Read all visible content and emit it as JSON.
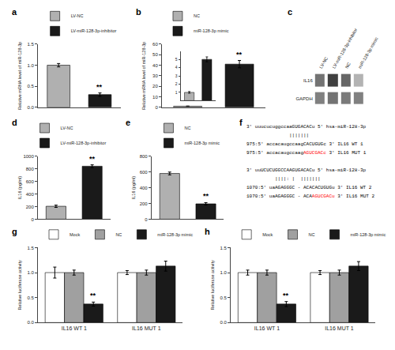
{
  "chart_data": [
    {
      "type": "bar",
      "title": "a",
      "series": [
        {
          "name": "LV-NC",
          "color": "#b0b0b0",
          "values": [
            1.0
          ],
          "errors": [
            0.04
          ]
        },
        {
          "name": "LV-miR-128-3p-inhibitor",
          "color": "#1a1a1a",
          "values": [
            0.3
          ],
          "errors": [
            0.04
          ]
        }
      ],
      "ylabel": "Relative mRNA level of miR-128-3p",
      "ylim": [
        0,
        1.5
      ],
      "yticks": [
        {
          "value": 0,
          "label": "0.0"
        },
        0.5,
        {
          "value": 1,
          "label": "1.0"
        },
        1.5
      ],
      "legend": "upper right",
      "tick_labels": "y",
      "grid": false,
      "annotations": [
        {
          "text": "**",
          "series": "LV-miR-128-3p-inhibitor"
        }
      ]
    },
    {
      "type": "bar",
      "title": "b",
      "series": [
        {
          "name": "NC",
          "color": "#b0b0b0",
          "values": [
            1.0
          ],
          "errors": [
            0.15
          ]
        },
        {
          "name": "miR-128-3p mimic",
          "color": "#1a1a1a",
          "values": [
            41.0
          ],
          "errors": [
            3.5
          ]
        }
      ],
      "ylabel": "Relative mRNA level of miR-128-3p",
      "ylim": [
        0,
        60
      ],
      "yticks": [
        0,
        10,
        20,
        30,
        40,
        50,
        60
      ],
      "legend": "upper left",
      "tick_labels": "y",
      "grid": false,
      "annotations": [
        {
          "text": "**",
          "series": "miR-128-3p mimic"
        }
      ]
    },
    {
      "type": "bar",
      "values": [
        1.0,
        5.0
      ],
      "errors": [
        0.1,
        0.3
      ],
      "colors": [
        "#b0b0b0",
        "#1a1a1a"
      ],
      "ylim": [
        0,
        6
      ],
      "yticks": [
        1,
        2,
        3,
        4,
        5
      ],
      "tick_labels": "y",
      "grid": false
    },
    {
      "type": "blot",
      "title": "c",
      "categories": [
        "LV-NC",
        "LV-miR-128-3p-inhibitor",
        "NC",
        "miR-128-3p mimic"
      ],
      "series": [
        {
          "name": "IL16",
          "values": [
            0.55,
            0.75,
            0.6,
            0.3
          ]
        },
        {
          "name": "GAPDH",
          "values": [
            0.5,
            0.55,
            0.52,
            0.5
          ]
        }
      ],
      "zlim": [
        0,
        1
      ]
    },
    {
      "type": "bar",
      "title": "d",
      "series": [
        {
          "name": "LV-NC",
          "color": "#b0b0b0",
          "values": [
            205
          ],
          "errors": [
            18
          ]
        },
        {
          "name": "LV-miR-128-3p-inhibitor",
          "color": "#1a1a1a",
          "values": [
            840
          ],
          "errors": [
            22
          ]
        }
      ],
      "ylabel": "IL16 (pg/ml)",
      "ylim": [
        0,
        1000
      ],
      "yticks": [
        0,
        200,
        400,
        600,
        800,
        1000
      ],
      "legend": "upper right",
      "tick_labels": "y",
      "grid": false,
      "annotations": [
        {
          "text": "**",
          "series": "LV-miR-128-3p-inhibitor"
        }
      ]
    },
    {
      "type": "bar",
      "title": "e",
      "series": [
        {
          "name": "NC",
          "color": "#b0b0b0",
          "values": [
            580
          ],
          "errors": [
            18
          ]
        },
        {
          "name": "miR-128-3p mimic",
          "color": "#1a1a1a",
          "values": [
            195
          ],
          "errors": [
            15
          ]
        }
      ],
      "ylabel": "IL16 (pg/ml)",
      "ylim": [
        0,
        800
      ],
      "yticks": [
        0,
        200,
        400,
        600,
        800
      ],
      "legend": "upper right",
      "tick_labels": "y",
      "grid": false,
      "annotations": [
        {
          "text": "**",
          "series": "miR-128-3p mimic"
        }
      ]
    },
    {
      "type": "text",
      "title": "f",
      "annotations": [
        [
          "3' uuucucuggccaaGUGACACu 5' hsa-miR-128-3p",
          "               |||||||",
          "975:5' accacaugccaagCACUGUGc 3' IL16 WT 1",
          [
            {
              "text": "975:5' accacaugccaag"
            },
            {
              "text": "AGUCGACc",
              "color": "red"
            },
            {
              "text": " 3' IL16 MUT 1"
            }
          ]
        ],
        [
          "3' uuUCUCUGGCCAAGUGACACu 5' hsa-miR-128-3p",
          "          ||||: |  |||||||",
          "1070:5' uaAGAGGGC - ACACACUGUGu 3' IL16 WT 2",
          [
            {
              "text": "1070:5' uaAGAGGGC - ACA"
            },
            {
              "text": "AGUCGACu",
              "color": "red"
            },
            {
              "text": " 3' IL16 MUT 2"
            }
          ]
        ]
      ]
    },
    {
      "type": "bar",
      "title": "g",
      "categories": [
        "IL16 WT 1",
        "IL16 MUT 1"
      ],
      "series": [
        {
          "name": "Mock",
          "color": "#ffffff",
          "values": [
            1.0,
            1.0
          ],
          "errors": [
            0.11,
            0.04
          ]
        },
        {
          "name": "NC",
          "color": "#a0a0a0",
          "values": [
            1.0,
            1.0
          ],
          "errors": [
            0.05,
            0.05
          ]
        },
        {
          "name": "miR-128-3p mimic",
          "color": "#1a1a1a",
          "values": [
            0.37,
            1.13
          ],
          "errors": [
            0.04,
            0.1
          ]
        }
      ],
      "ylabel": "Relative luciferase activity",
      "ylim": [
        0,
        1.5
      ],
      "yticks": [
        {
          "value": 0,
          "label": "0.0"
        },
        0.5,
        {
          "value": 1,
          "label": "1.0"
        },
        1.5
      ],
      "legend": "upper left",
      "grid": false,
      "annotations": [
        {
          "text": "**",
          "category": "IL16 WT 1",
          "series": "miR-128-3p mimic"
        }
      ]
    },
    {
      "type": "bar",
      "title": "h",
      "categories": [
        "IL16 WT 1",
        "IL16 MUT 1"
      ],
      "series": [
        {
          "name": "Mock",
          "color": "#ffffff",
          "values": [
            1.0,
            1.0
          ],
          "errors": [
            0.05,
            0.04
          ]
        },
        {
          "name": "NC",
          "color": "#a0a0a0",
          "values": [
            1.0,
            1.0
          ],
          "errors": [
            0.05,
            0.05
          ]
        },
        {
          "name": "miR-128-3p mimic",
          "color": "#1a1a1a",
          "values": [
            0.37,
            1.13
          ],
          "errors": [
            0.05,
            0.09
          ]
        }
      ],
      "ylabel": "Relative luciferase activity",
      "ylim": [
        0,
        1.5
      ],
      "yticks": [
        {
          "value": 0,
          "label": "0.0"
        },
        0.5,
        {
          "value": 1,
          "label": "1.0"
        },
        1.5
      ],
      "legend": "upper left",
      "grid": false,
      "annotations": [
        {
          "text": "**",
          "category": "IL16 WT 1",
          "series": "miR-128-3p mimic"
        }
      ]
    }
  ]
}
